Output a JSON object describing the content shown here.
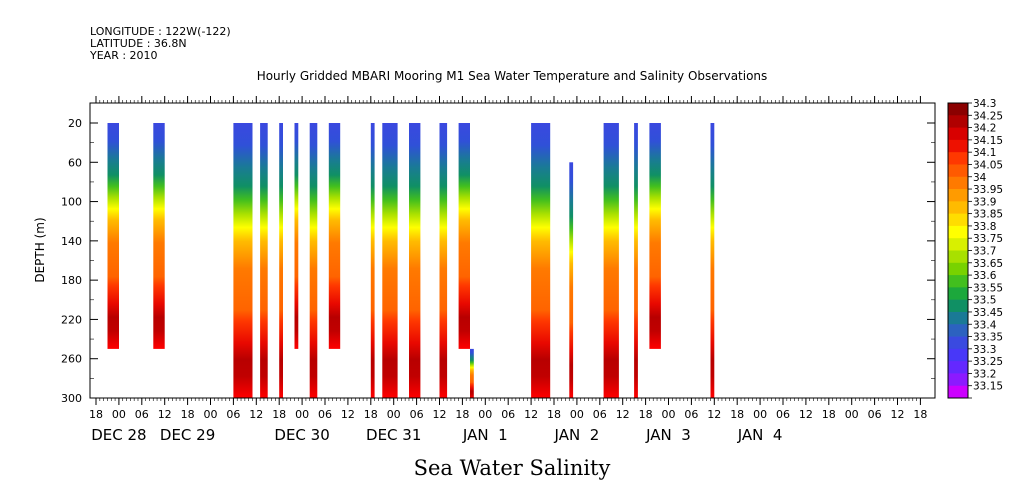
{
  "header": {
    "longitude": "LONGITUDE : 122W(-122)",
    "latitude": "LATITUDE : 36.8N",
    "year": "YEAR : 2010",
    "title": "Hourly Gridded MBARI Mooring M1 Sea Water Temperature and Salinity Observations"
  },
  "chart_data": {
    "type": "heatmap",
    "title": "Hourly Gridded MBARI Mooring M1 Sea Water Temperature and Salinity Observations",
    "xlabel": "",
    "ylabel": "DEPTH (m)",
    "caption": "Sea Water Salinity",
    "x_hour_ticks": [
      "18",
      "00",
      "06",
      "12",
      "18",
      "00",
      "06",
      "12",
      "18",
      "00",
      "06",
      "12",
      "18",
      "00",
      "06",
      "12",
      "18",
      "00",
      "06",
      "12",
      "18",
      "00",
      "06",
      "12",
      "18",
      "00",
      "06",
      "12",
      "18",
      "00",
      "06",
      "12",
      "18",
      "00",
      "06",
      "12",
      "18"
    ],
    "x_day_labels": [
      {
        "label": "DEC 28",
        "tick": 1
      },
      {
        "label": "DEC 29",
        "tick": 4
      },
      {
        "label": "DEC 30",
        "tick": 9
      },
      {
        "label": "DEC 31",
        "tick": 13
      },
      {
        "label": "JAN  1",
        "tick": 17
      },
      {
        "label": "JAN  2",
        "tick": 21
      },
      {
        "label": "JAN  3",
        "tick": 25
      },
      {
        "label": "JAN  4",
        "tick": 29
      }
    ],
    "y_ticks": [
      "20",
      "60",
      "100",
      "140",
      "180",
      "220",
      "260",
      "300"
    ],
    "ylim": [
      300,
      0
    ],
    "colorbar_labels": [
      "34.3",
      "34.25",
      "34.2",
      "34.15",
      "34.1",
      "34.05",
      "34",
      "33.95",
      "33.9",
      "33.85",
      "33.8",
      "33.75",
      "33.7",
      "33.65",
      "33.6",
      "33.55",
      "33.5",
      "33.45",
      "33.4",
      "33.35",
      "33.3",
      "33.25",
      "33.2",
      "33.15"
    ],
    "colorbar_colors": [
      "#8b0000",
      "#b00000",
      "#d80000",
      "#ee1100",
      "#ff3800",
      "#ff5a00",
      "#ff7a00",
      "#ff9b00",
      "#ffbb00",
      "#ffdd00",
      "#ffff00",
      "#d8f000",
      "#a8e000",
      "#78d200",
      "#42bf1e",
      "#1ca83c",
      "#109064",
      "#1a7a96",
      "#2c62c0",
      "#3a4ae0",
      "#4838f8",
      "#6428ff",
      "#8c1aff",
      "#cc00ff"
    ],
    "columns": [
      {
        "start_hour": 3,
        "end_hour": 6,
        "top": 20,
        "bottom": 250
      },
      {
        "start_hour": 15,
        "end_hour": 18,
        "top": 20,
        "bottom": 250
      },
      {
        "start_hour": 36,
        "end_hour": 41,
        "top": 20,
        "bottom": 300
      },
      {
        "start_hour": 43,
        "end_hour": 45,
        "top": 20,
        "bottom": 300
      },
      {
        "start_hour": 48,
        "end_hour": 49,
        "top": 20,
        "bottom": 300
      },
      {
        "start_hour": 52,
        "end_hour": 53,
        "top": 20,
        "bottom": 250
      },
      {
        "start_hour": 56,
        "end_hour": 58,
        "top": 20,
        "bottom": 300
      },
      {
        "start_hour": 61,
        "end_hour": 64,
        "top": 20,
        "bottom": 250
      },
      {
        "start_hour": 72,
        "end_hour": 73,
        "top": 20,
        "bottom": 300
      },
      {
        "start_hour": 75,
        "end_hour": 79,
        "top": 20,
        "bottom": 300
      },
      {
        "start_hour": 82,
        "end_hour": 85,
        "top": 20,
        "bottom": 300
      },
      {
        "start_hour": 90,
        "end_hour": 92,
        "top": 20,
        "bottom": 300
      },
      {
        "start_hour": 95,
        "end_hour": 98,
        "top": 20,
        "bottom": 250
      },
      {
        "start_hour": 98,
        "end_hour": 99,
        "top": 250,
        "bottom": 300
      },
      {
        "start_hour": 114,
        "end_hour": 119,
        "top": 20,
        "bottom": 300
      },
      {
        "start_hour": 124,
        "end_hour": 125,
        "top": 60,
        "bottom": 300
      },
      {
        "start_hour": 133,
        "end_hour": 137,
        "top": 20,
        "bottom": 300
      },
      {
        "start_hour": 141,
        "end_hour": 142,
        "top": 20,
        "bottom": 300
      },
      {
        "start_hour": 145,
        "end_hour": 148,
        "top": 20,
        "bottom": 250
      },
      {
        "start_hour": 161,
        "end_hour": 162,
        "top": 20,
        "bottom": 300
      }
    ]
  }
}
